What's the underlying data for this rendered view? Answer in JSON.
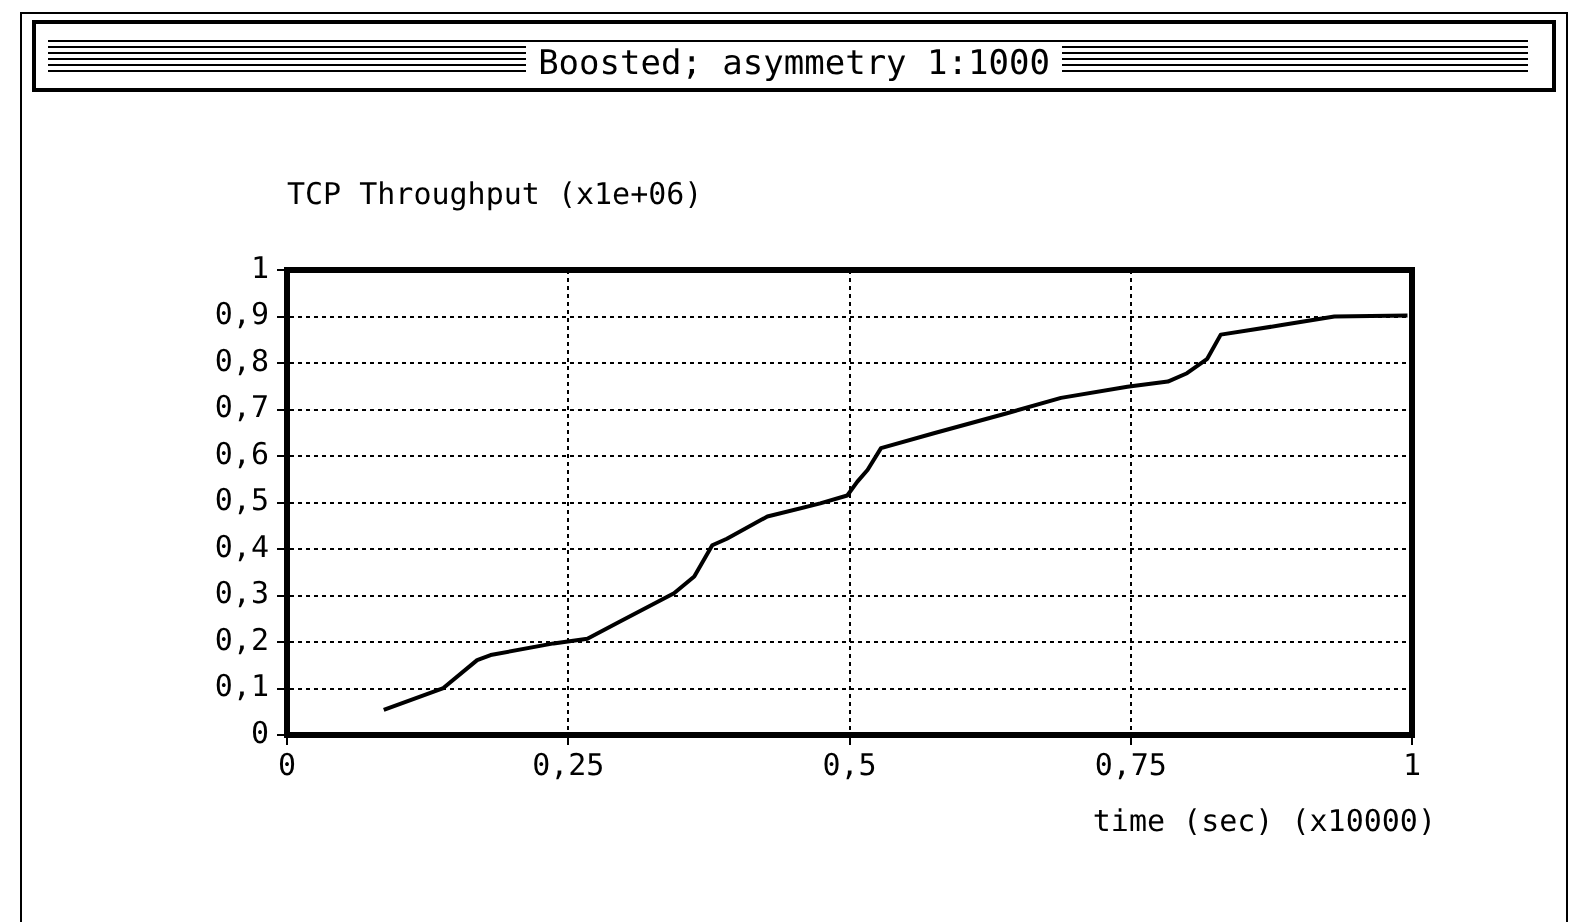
{
  "chart_data": {
    "type": "line",
    "title": "Boosted; asymmetry 1:1000",
    "ylabel": "TCP Throughput (x1e+06)",
    "xlabel": "time (sec) (x10000)",
    "xlim": [
      0,
      1
    ],
    "xticks": [
      0,
      {
        "value": 0.25,
        "label": "0,25"
      },
      {
        "value": 0.5,
        "label": "0,5"
      },
      {
        "value": 0.75,
        "label": "0,75"
      },
      1
    ],
    "ylim": [
      0,
      1
    ],
    "yticks": [
      0,
      {
        "value": 0.1,
        "label": "0,1"
      },
      {
        "value": 0.2,
        "label": "0,2"
      },
      {
        "value": 0.3,
        "label": "0,3"
      },
      {
        "value": 0.4,
        "label": "0,4"
      },
      {
        "value": 0.5,
        "label": "0,5"
      },
      {
        "value": 0.6,
        "label": "0,6"
      },
      {
        "value": 0.7,
        "label": "0,7"
      },
      {
        "value": 0.8,
        "label": "0,8"
      },
      {
        "value": 0.9,
        "label": "0,9"
      },
      1
    ],
    "grid": true,
    "x": [
      0.086,
      0.139,
      0.169,
      0.181,
      0.237,
      0.267,
      0.296,
      0.344,
      0.362,
      0.378,
      0.391,
      0.427,
      0.474,
      0.498,
      0.507,
      0.516,
      0.528,
      0.575,
      0.64,
      0.688,
      0.747,
      0.783,
      0.8,
      0.818,
      0.83,
      0.883,
      0.931,
      0.996
    ],
    "series": [
      {
        "color": "#000000",
        "values": [
          0.054,
          0.101,
          0.161,
          0.172,
          0.197,
          0.207,
          0.244,
          0.305,
          0.341,
          0.408,
          0.422,
          0.47,
          0.498,
          0.515,
          0.545,
          0.57,
          0.617,
          0.649,
          0.692,
          0.725,
          0.749,
          0.76,
          0.778,
          0.809,
          0.861,
          0.881,
          0.9,
          0.902
        ]
      }
    ]
  }
}
